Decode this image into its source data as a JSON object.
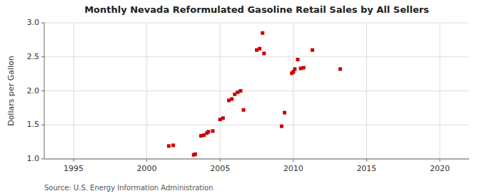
{
  "chart_data": {
    "type": "scatter",
    "title": "Monthly Nevada Reformulated Gasoline Retail Sales by All Sellers",
    "ylabel": "Dollars per Gallon",
    "annotations": [
      "Source: U.S. Energy Information Administration"
    ],
    "color": "#cc0000",
    "marker": "square",
    "grid": true,
    "xlim": [
      1993,
      2022
    ],
    "ylim": [
      1.0,
      3.0
    ],
    "xticks": [
      1995,
      2000,
      2005,
      2010,
      2015,
      2020
    ],
    "yticks": [
      {
        "value": 1.0,
        "label": "1.0"
      },
      1.5,
      {
        "value": 2.0,
        "label": "2.0"
      },
      2.5,
      {
        "value": 3.0,
        "label": "3.0"
      }
    ],
    "x": [
      2001.5,
      2001.8,
      2003.2,
      2003.3,
      2003.7,
      2003.9,
      2004.1,
      2004.2,
      2004.5,
      2005.0,
      2005.2,
      2005.6,
      2005.8,
      2006.0,
      2006.2,
      2006.4,
      2006.6,
      2007.5,
      2007.7,
      2007.9,
      2008.0,
      2009.2,
      2009.4,
      2009.9,
      2010.0,
      2010.1,
      2010.3,
      2010.5,
      2010.7,
      2011.3,
      2013.2
    ],
    "values": [
      1.19,
      1.2,
      1.06,
      1.07,
      1.34,
      1.35,
      1.38,
      1.4,
      1.41,
      1.58,
      1.6,
      1.86,
      1.88,
      1.95,
      1.98,
      2.0,
      1.72,
      2.6,
      2.62,
      2.85,
      2.55,
      1.48,
      1.68,
      2.26,
      2.28,
      2.32,
      2.46,
      2.33,
      2.34,
      2.6,
      2.32
    ]
  }
}
